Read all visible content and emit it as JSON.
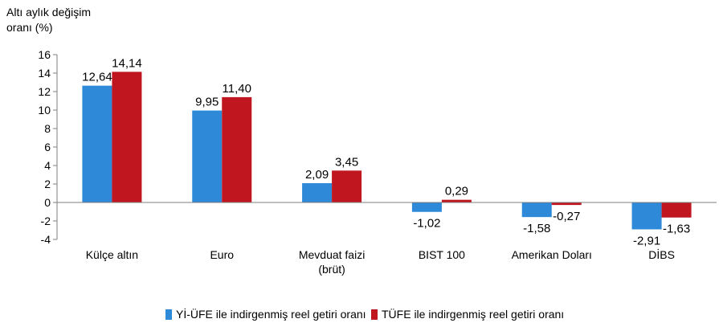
{
  "chart_data": {
    "type": "bar",
    "ylabel_line1": "Altı aylık değişim",
    "ylabel_line2": "oranı (%)",
    "ylim": [
      -4,
      16
    ],
    "yticks": [
      -4,
      -2,
      0,
      2,
      4,
      6,
      8,
      10,
      12,
      14,
      16
    ],
    "grid": false,
    "legend_position": "bottom",
    "categories": [
      "Külçe altın",
      "Euro",
      "Mevduat faizi\n(brüt)",
      "BIST 100",
      "Amerikan Doları",
      "DİBS"
    ],
    "series": [
      {
        "name": "Yİ-ÜFE ile indirgenmiş reel getiri oranı",
        "color": "#2e8ad8",
        "values": [
          12.64,
          9.95,
          2.09,
          -1.02,
          -1.58,
          -2.91
        ],
        "labels": [
          "12,64",
          "9,95",
          "2,09",
          "-1,02",
          "-1,58",
          "-2,91"
        ]
      },
      {
        "name": "TÜFE ile indirgenmiş reel getiri oranı",
        "color": "#c0161f",
        "values": [
          14.14,
          11.4,
          3.45,
          0.29,
          -0.27,
          -1.63
        ],
        "labels": [
          "14,14",
          "11,40",
          "3,45",
          "0,29",
          "-0,27",
          "-1,63"
        ]
      }
    ]
  }
}
